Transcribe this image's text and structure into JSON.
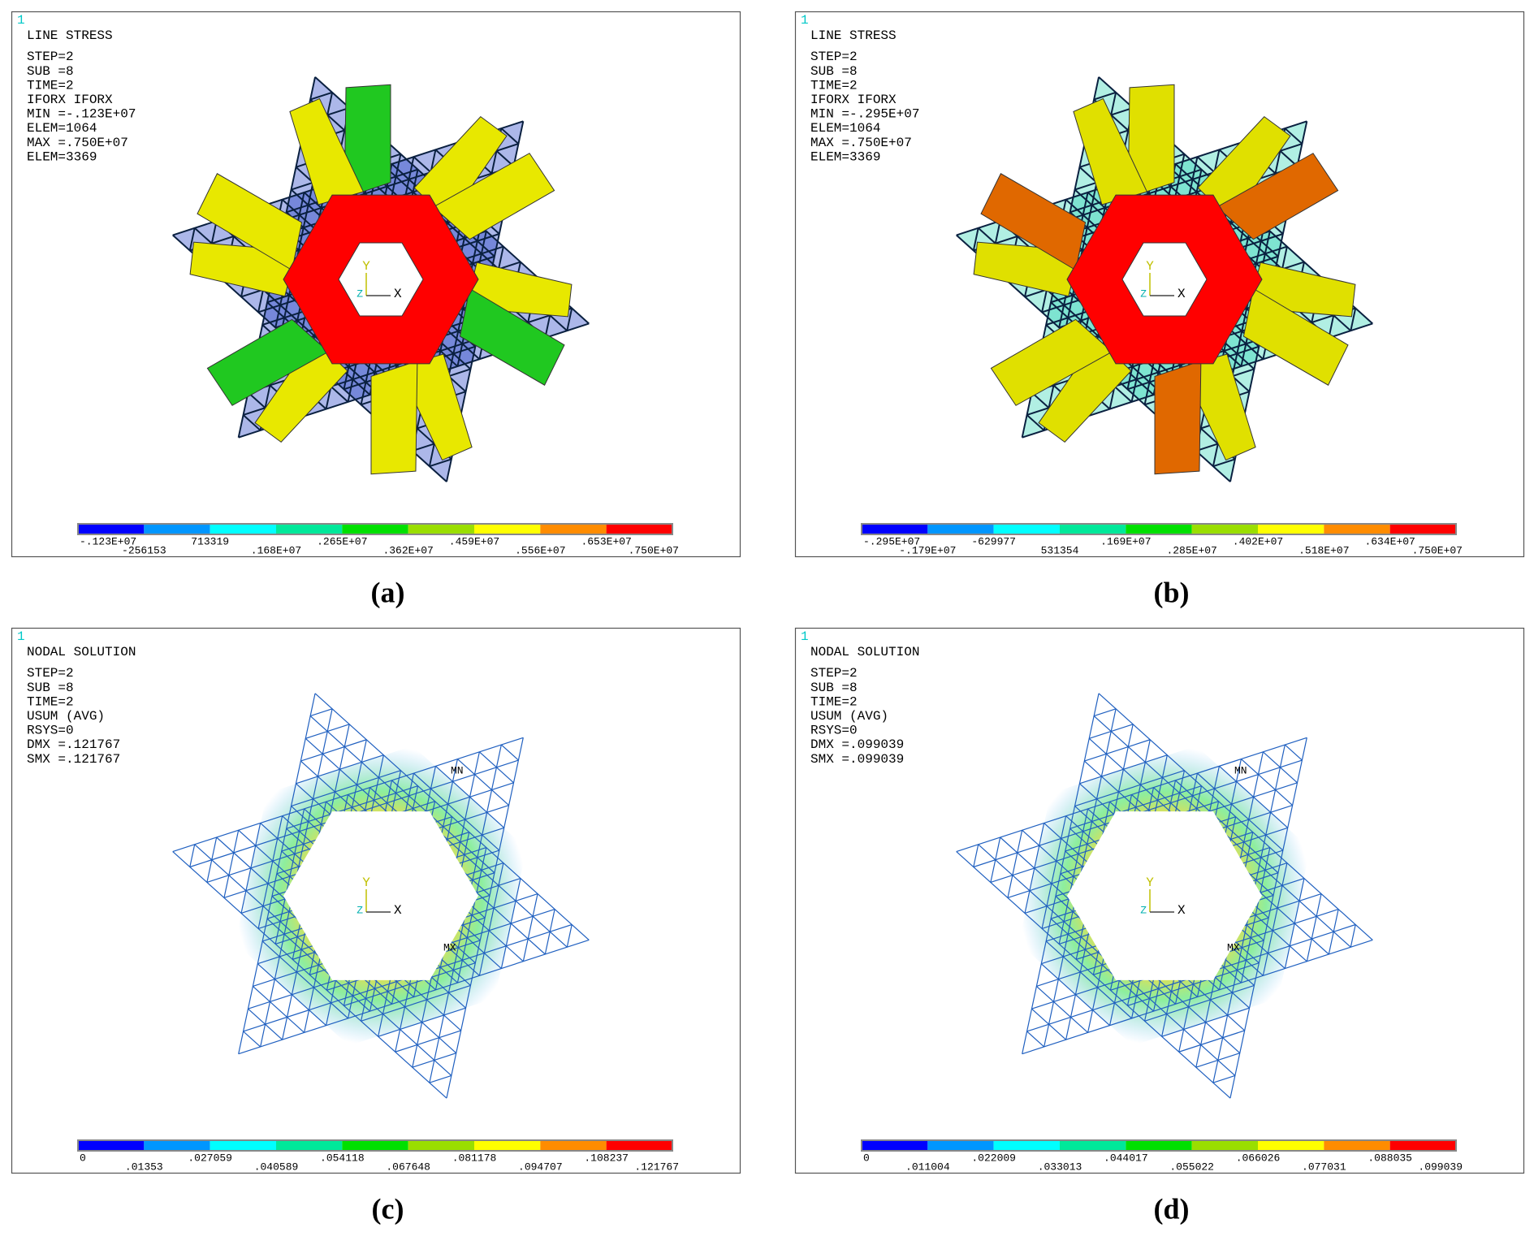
{
  "legend_colors": [
    "#0000ff",
    "#0096ff",
    "#00ffff",
    "#00e89a",
    "#00e000",
    "#9ade00",
    "#ffff00",
    "#ff8c00",
    "#ff0000"
  ],
  "panels": [
    {
      "caption": "(a)",
      "header": [
        "1",
        "LINE STRESS",
        "STEP=2",
        "SUB =8",
        "TIME=2",
        "IFORX    IFORX",
        "MIN =-.123E+07",
        "ELEM=1064",
        "MAX =.750E+07",
        "ELEM=3369"
      ],
      "triad": [
        "Y",
        "Z",
        "X"
      ],
      "legend": [
        "-.123E+07",
        "-256153",
        "713319",
        ".168E+07",
        ".265E+07",
        ".362E+07",
        ".459E+07",
        ".556E+07",
        ".653E+07",
        ".750E+07"
      ]
    },
    {
      "caption": "(b)",
      "header": [
        "1",
        "LINE STRESS",
        "STEP=2",
        "SUB =8",
        "TIME=2",
        "IFORX    IFORX",
        "MIN =-.295E+07",
        "ELEM=1064",
        "MAX =.750E+07",
        "ELEM=3369"
      ],
      "triad": [
        "Y",
        "Z",
        "X"
      ],
      "legend": [
        "-.295E+07",
        "-.179E+07",
        "-629977",
        "531354",
        ".169E+07",
        ".285E+07",
        ".402E+07",
        ".518E+07",
        ".634E+07",
        ".750E+07"
      ]
    },
    {
      "caption": "(c)",
      "header": [
        "1",
        "NODAL SOLUTION",
        "STEP=2",
        "SUB =8",
        "TIME=2",
        "USUM      (AVG)",
        "RSYS=0",
        "DMX =.121767",
        "SMX =.121767"
      ],
      "triad": [
        "Y",
        "Z",
        "X"
      ],
      "markers": [
        "MN",
        "MX"
      ],
      "legend": [
        "0",
        ".01353",
        ".027059",
        ".040589",
        ".054118",
        ".067648",
        ".081178",
        ".094707",
        ".108237",
        ".121767"
      ]
    },
    {
      "caption": "(d)",
      "header": [
        "1",
        "NODAL SOLUTION",
        "STEP=2",
        "SUB =8",
        "TIME=2",
        "USUM      (AVG)",
        "RSYS=0",
        "DMX =.099039",
        "SMX =.099039"
      ],
      "triad": [
        "Y",
        "Z",
        "X"
      ],
      "markers": [
        "MN",
        "MX"
      ],
      "legend": [
        "0",
        ".011004",
        ".022009",
        ".033013",
        ".044017",
        ".055022",
        ".066026",
        ".077031",
        ".088035",
        ".099039"
      ]
    }
  ]
}
